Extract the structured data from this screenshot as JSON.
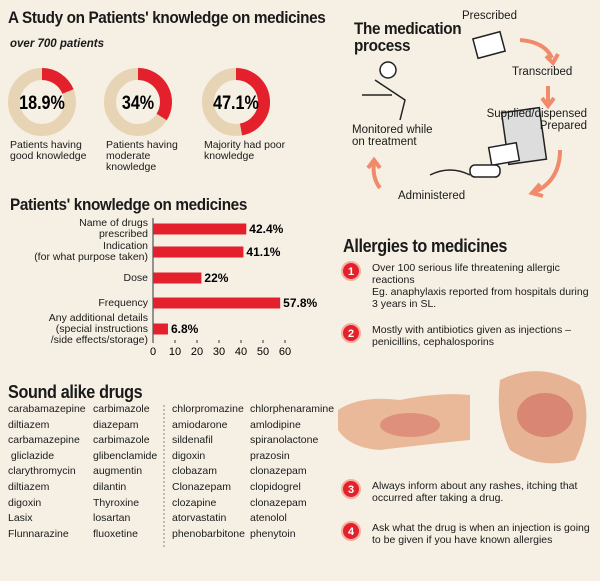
{
  "chart_data": [
    {
      "type": "donut",
      "title": "A Study on Patients' knowledge on medicines",
      "subtitle": "over 700 patients",
      "categories": [
        "Patients having\ngood knowledge",
        "Patients having\nmoderate\nknowledge",
        "Majority had poor\nknowledge"
      ],
      "values": [
        18.9,
        34,
        47.1
      ],
      "value_labels": [
        "18.9%",
        "34%",
        "47.1%"
      ],
      "color": "#e3202b",
      "track_color": "#e6d4b4"
    },
    {
      "type": "bar",
      "title": "Patients' knowledge on medicines",
      "categories": [
        "Name of drugs\nprescribed",
        "Indication\n(for what purpose taken)",
        "Dose",
        "Frequency",
        "Any additional details\n(special instructions\n/side effects/storage)"
      ],
      "values": [
        42.4,
        41.1,
        22,
        57.8,
        6.8
      ],
      "value_labels": [
        "42.4%",
        "41.1%",
        "22%",
        "57.8%",
        "6.8%"
      ],
      "xlim": [
        0,
        60
      ],
      "xticks": [
        0,
        10,
        20,
        30,
        40,
        50,
        60
      ],
      "color": "#e3202b"
    }
  ],
  "process": {
    "title": "The medication\nprocess",
    "steps": [
      "Prescribed",
      "Transcribed",
      "Supplied/dispensed\nPrepared",
      "Administered",
      "Monitored while\non treatment"
    ]
  },
  "allergies": {
    "title": "Allergies to medicines",
    "items": [
      {
        "number": 1,
        "text": "Over 100 serious life threatening allergic\nreactions\nEg. anaphylaxis reported from hospitals during\n3 years in SL."
      },
      {
        "number": 2,
        "text": "Mostly with antibiotics given as injections –\npenicillins, cephalosporins"
      },
      {
        "number": 3,
        "text": "Always inform about any rashes, itching that\noccurred after taking a drug."
      },
      {
        "number": 4,
        "text": "Ask what the drug is when an injection is going\nto be given if you have known allergies"
      }
    ]
  },
  "sound_alike": {
    "title": "Sound alike drugs",
    "columns": [
      [
        "carabamazepine",
        "diltiazem",
        "carbamazepine",
        " gliclazide",
        "clarythromycin",
        "diltiazem",
        "digoxin",
        "Lasix",
        "Flunnarazine"
      ],
      [
        "carbimazole",
        "diazepam",
        "carbimazole",
        "glibenclamide",
        "augmentin",
        "dilantin",
        "Thyroxine",
        "losartan",
        "fluoxetine"
      ],
      [
        "chlorpromazine",
        "amiodarone",
        "sildenafil",
        "digoxin",
        "clobazam",
        "Clonazepam",
        "clozapine",
        "atorvastatin",
        "phenobarbitone"
      ],
      [
        "chlorphenaramine",
        "amlodipine",
        "spiranolactone",
        "prazosin",
        "clonazepam",
        "clopidogrel",
        "clonazepam",
        "atenolol",
        "phenytoin"
      ]
    ]
  }
}
